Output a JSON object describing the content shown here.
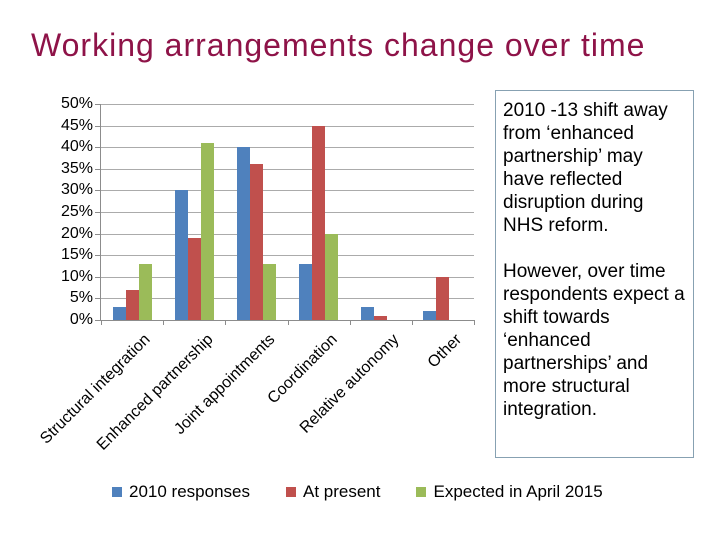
{
  "slide": {
    "title": "Working arrangements change over time"
  },
  "chart_data": {
    "type": "bar",
    "title": "",
    "xlabel": "",
    "ylabel": "",
    "categories": [
      "Structural integration",
      "Enhanced partnership",
      "Joint appointments",
      "Coordination",
      "Relative autonomy",
      "Other"
    ],
    "series": [
      {
        "name": "2010 responses",
        "color": "#4F81BD",
        "values": [
          3,
          30,
          40,
          13,
          3,
          2
        ]
      },
      {
        "name": "At present",
        "color": "#C0504D",
        "values": [
          7,
          19,
          36,
          45,
          1,
          10
        ]
      },
      {
        "name": "Expected in April 2015",
        "color": "#9BBB59",
        "values": [
          13,
          41,
          13,
          20,
          0,
          0
        ]
      }
    ],
    "ylim": [
      0,
      50
    ],
    "ytick_step": 5,
    "ytick_suffix": "%",
    "grid": true,
    "legend_position": "bottom",
    "category_label_rotation": -45
  },
  "annotation": {
    "paragraphs": [
      "2010 -13 shift away from ‘enhanced partnership’ may have reflected disruption during NHS reform.",
      "However, over time respondents expect a shift towards ‘enhanced partnerships’ and more structural integration."
    ]
  },
  "colors": {
    "title_text": "#8E1348",
    "gridline": "#ABABAB",
    "axis": "#8C8C8C",
    "annotation_border": "#87A1B2",
    "background": "#FFFFFF"
  }
}
